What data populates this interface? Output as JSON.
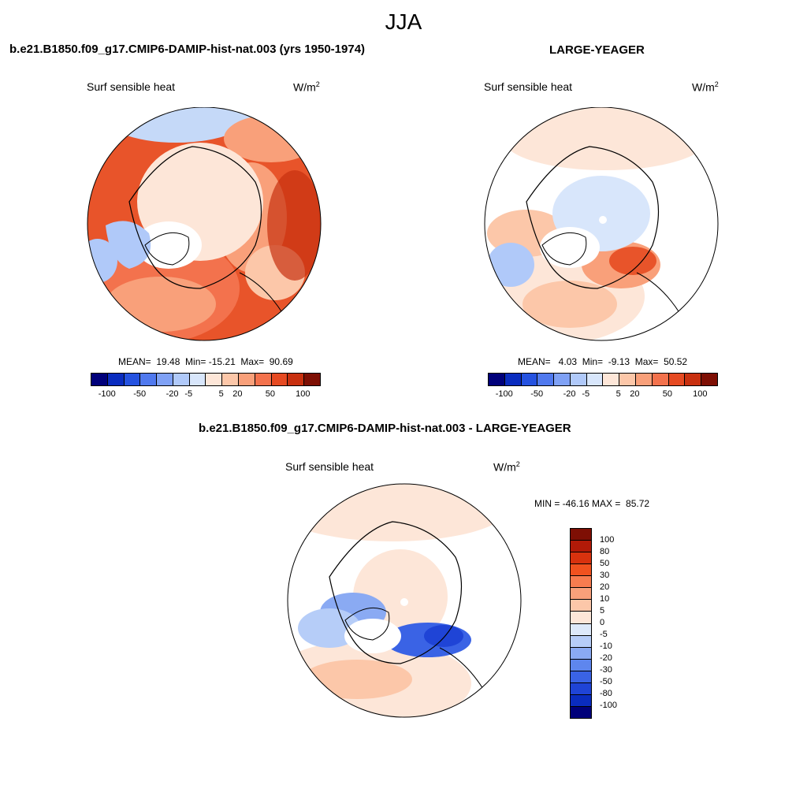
{
  "title": "JJA",
  "units_base": "W/m",
  "units_exp": "2",
  "panels": [
    {
      "title": "b.e21.B1850.f09_g17.CMIP6-DAMIP-hist-nat.003 (yrs 1950-1974)",
      "variable": "Surf sensible heat",
      "stats_text": "MEAN=  19.48  Min= -15.21  Max=  90.69"
    },
    {
      "title": "LARGE-YEAGER",
      "variable": "Surf sensible heat",
      "stats_text": "MEAN=   4.03  Min=  -9.13  Max=  50.52"
    },
    {
      "title": "b.e21.B1850.f09_g17.CMIP6-DAMIP-hist-nat.003 - LARGE-YEAGER",
      "variable": "Surf sensible heat",
      "stats_text": "MIN = -46.16 MAX =  85.72"
    }
  ],
  "chart_data": [
    {
      "type": "heatmap",
      "projection": "north-polar-stereographic",
      "title": "b.e21.B1850.f09_g17.CMIP6-DAMIP-hist-nat.003 (yrs 1950-1974)",
      "variable": "Surf sensible heat",
      "units": "W/m2",
      "mean": 19.48,
      "min": -15.21,
      "max": 90.69,
      "colorbar": {
        "orientation": "horizontal",
        "tick_labels": [
          "-100",
          "-50",
          "-20",
          "-5",
          "5",
          "20",
          "50",
          "100"
        ],
        "colors": [
          "#00007a",
          "#0a2cbf",
          "#2552e0",
          "#5079ee",
          "#7fa1f5",
          "#b0c9f9",
          "#d8e6fb",
          "#fde6d8",
          "#fcc7a9",
          "#f9a07a",
          "#f3724d",
          "#e64a22",
          "#c8300f",
          "#7e0f04"
        ]
      }
    },
    {
      "type": "heatmap",
      "projection": "north-polar-stereographic",
      "title": "LARGE-YEAGER",
      "variable": "Surf sensible heat",
      "units": "W/m2",
      "mean": 4.03,
      "min": -9.13,
      "max": 50.52,
      "colorbar": {
        "orientation": "horizontal",
        "tick_labels": [
          "-100",
          "-50",
          "-20",
          "-5",
          "5",
          "20",
          "50",
          "100"
        ],
        "colors": [
          "#00007a",
          "#0a2cbf",
          "#2552e0",
          "#5079ee",
          "#7fa1f5",
          "#b0c9f9",
          "#d8e6fb",
          "#fde6d8",
          "#fcc7a9",
          "#f9a07a",
          "#f3724d",
          "#e64a22",
          "#c8300f",
          "#7e0f04"
        ]
      }
    },
    {
      "type": "heatmap",
      "projection": "north-polar-stereographic",
      "title": "b.e21.B1850.f09_g17.CMIP6-DAMIP-hist-nat.003 - LARGE-YEAGER",
      "variable": "Surf sensible heat",
      "units": "W/m2",
      "min": -46.16,
      "max": 85.72,
      "colorbar": {
        "orientation": "vertical",
        "tick_labels": [
          "100",
          "80",
          "50",
          "30",
          "20",
          "10",
          "5",
          "0",
          "-5",
          "-10",
          "-20",
          "-30",
          "-50",
          "-80",
          "-100"
        ],
        "colors": [
          "#7e0f04",
          "#b21a08",
          "#d8320e",
          "#f0521f",
          "#f77c4f",
          "#f9a07a",
          "#fcc7a9",
          "#fde6d8",
          "#dde9fa",
          "#b6cdf8",
          "#8aaaf3",
          "#5e86ee",
          "#3a63e5",
          "#1f44d6",
          "#0a2cbf",
          "#00007a"
        ]
      }
    }
  ]
}
